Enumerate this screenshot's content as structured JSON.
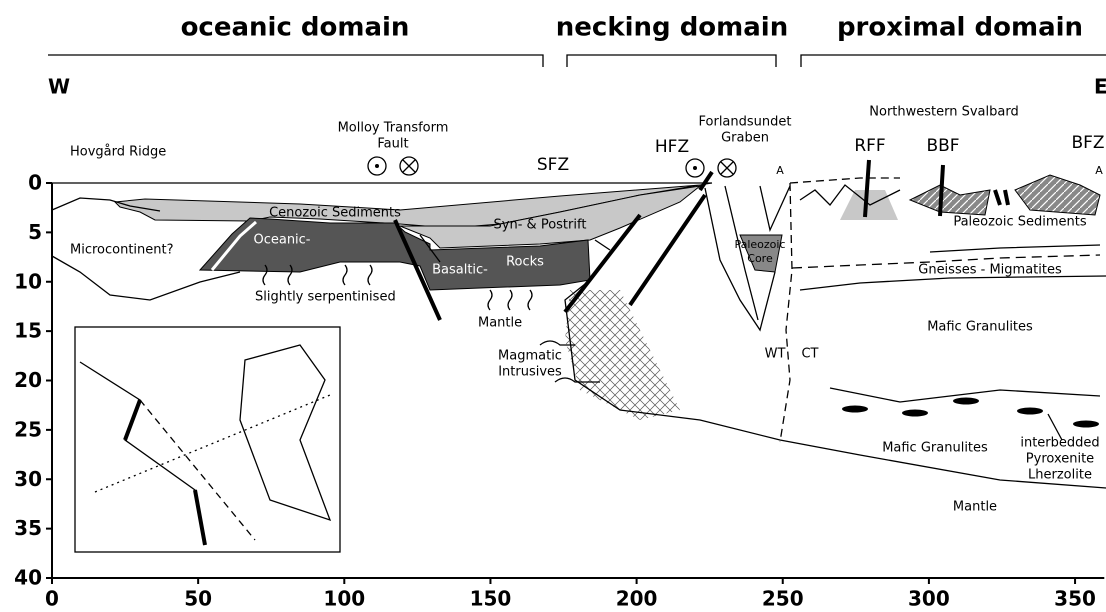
{
  "domains": [
    "oceanic domain",
    "necking domain",
    "proximal domain"
  ],
  "directions": {
    "west": "W",
    "east": "E"
  },
  "labels": {
    "hovgard": "Hovgård Ridge",
    "molloy": [
      "Molloy Transform",
      "Fault"
    ],
    "sfz": "SFZ",
    "hfz": "HFZ",
    "forlandsundet": [
      "Forlandsundet",
      "Graben"
    ],
    "nw_svalbard": "Northwestern Svalbard",
    "rff": "RFF",
    "bbf": "BBF",
    "bfz": "BFZ",
    "a_left": "A",
    "a_right": "A",
    "cenozoic": "Cenozoic Sediments",
    "synrift": "Syn- & Postrift",
    "microcontinent": "Microcontinent?",
    "oceanic": "Oceanic-",
    "basaltic": "Basaltic-",
    "rocks": "Rocks",
    "serpentinised": "Slightly serpentinised",
    "mantle_left": "Mantle",
    "magmatic": [
      "Magmatic",
      "Intrusives"
    ],
    "paleozoic_core": [
      "Paleozoic",
      "Core"
    ],
    "wt": "WT",
    "ct": "CT",
    "paleozoic_sed": "Paleozoic Sediments",
    "gneisses": "Gneisses - Migmatites",
    "mafic_1": "Mafic Granulites",
    "mafic_2": "Mafic Granulites",
    "interbedded": [
      "interbedded",
      "Pyroxenite",
      "Lherzolite"
    ],
    "mantle_right": "Mantle"
  },
  "axes": {
    "xlim": [
      0,
      360
    ],
    "ylim": [
      0,
      40
    ],
    "xticks": [
      0,
      50,
      100,
      150,
      200,
      250,
      300,
      350
    ],
    "yticks": [
      0,
      5,
      10,
      15,
      20,
      25,
      30,
      35,
      40
    ]
  }
}
